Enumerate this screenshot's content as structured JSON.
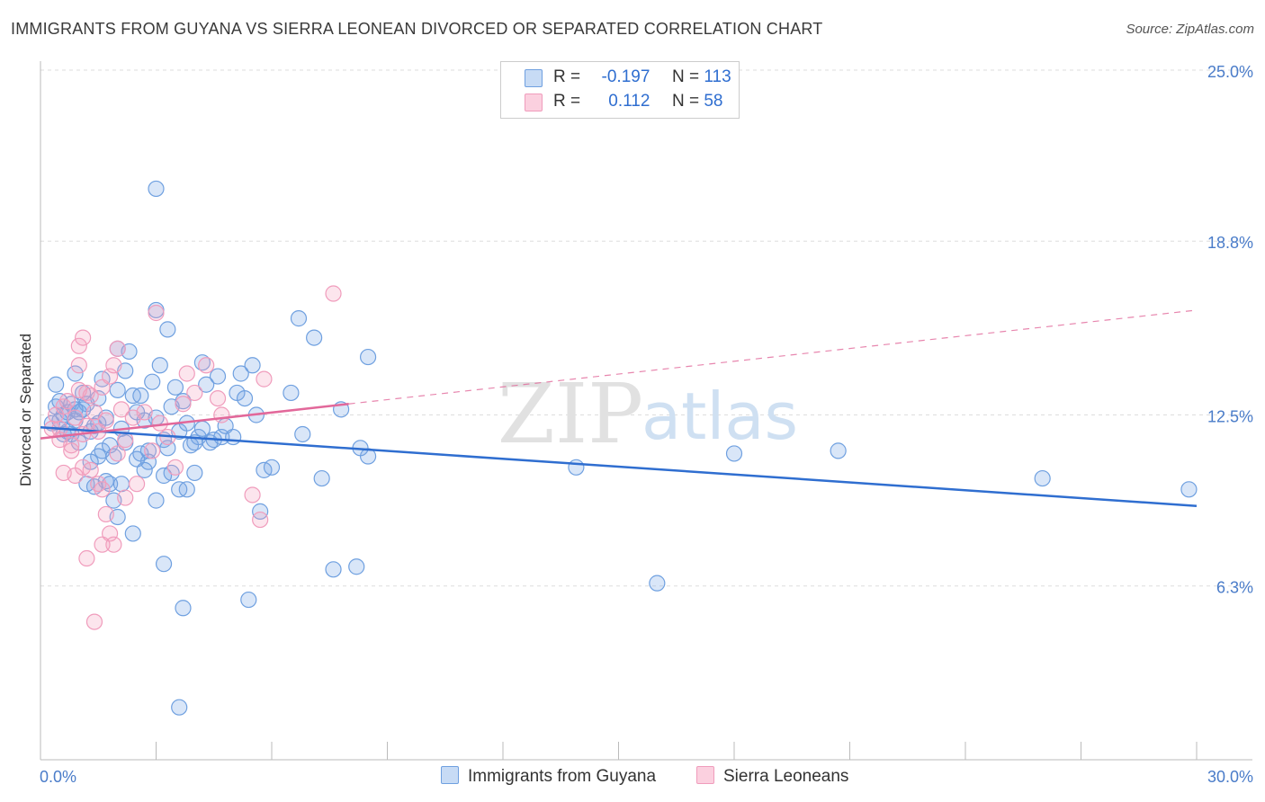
{
  "title": "IMMIGRANTS FROM GUYANA VS SIERRA LEONEAN DIVORCED OR SEPARATED CORRELATION CHART",
  "source": "Source: ZipAtlas.com",
  "watermark": {
    "zip": "ZIP",
    "atlas": "atlas"
  },
  "legend": {
    "rows": [
      {
        "r_label": "R =",
        "r_value": "-0.197",
        "n_label": "N =",
        "n_value": "113",
        "color": "#6fa0e0"
      },
      {
        "r_label": "R =",
        "r_value": "0.112",
        "n_label": "N =",
        "n_value": "58",
        "color": "#f09cbc"
      }
    ]
  },
  "chart_data": {
    "type": "scatter",
    "title": "IMMIGRANTS FROM GUYANA VS SIERRA LEONEAN DIVORCED OR SEPARATED CORRELATION CHART",
    "xlabel": "",
    "ylabel": "Divorced or Separated",
    "xlim": [
      0,
      30
    ],
    "ylim": [
      0,
      25
    ],
    "x_tick_labels": [
      "0.0%",
      "30.0%"
    ],
    "y_ticks": [
      6.3,
      12.5,
      18.8,
      25.0
    ],
    "y_tick_labels": [
      "6.3%",
      "12.5%",
      "18.8%",
      "25.0%"
    ],
    "grid": true,
    "legend_position": "top-center",
    "series": [
      {
        "name": "Immigrants from Guyana",
        "color": "#6fa0e0",
        "line_color": "#2f6ed0",
        "trend": {
          "x": [
            0,
            30
          ],
          "y": [
            12.05,
            9.2
          ],
          "style": "solid"
        },
        "points": [
          [
            0.3,
            12.2
          ],
          [
            0.4,
            12.8
          ],
          [
            0.5,
            13.0
          ],
          [
            0.6,
            12.5
          ],
          [
            0.7,
            12.6
          ],
          [
            0.8,
            11.8
          ],
          [
            0.9,
            12.3
          ],
          [
            1.0,
            11.5
          ],
          [
            1.1,
            13.3
          ],
          [
            1.2,
            12.9
          ],
          [
            1.3,
            11.9
          ],
          [
            1.4,
            12.1
          ],
          [
            1.5,
            13.1
          ],
          [
            1.6,
            11.2
          ],
          [
            1.7,
            12.4
          ],
          [
            1.8,
            11.4
          ],
          [
            1.9,
            11.0
          ],
          [
            2.0,
            13.4
          ],
          [
            2.1,
            12.0
          ],
          [
            2.2,
            14.1
          ],
          [
            2.3,
            14.8
          ],
          [
            2.4,
            13.2
          ],
          [
            2.5,
            12.6
          ],
          [
            2.6,
            11.1
          ],
          [
            2.7,
            12.3
          ],
          [
            2.8,
            10.8
          ],
          [
            2.9,
            13.7
          ],
          [
            3.0,
            12.4
          ],
          [
            3.1,
            14.3
          ],
          [
            3.2,
            11.6
          ],
          [
            3.3,
            11.3
          ],
          [
            3.4,
            12.8
          ],
          [
            3.5,
            13.5
          ],
          [
            3.6,
            11.9
          ],
          [
            3.7,
            13.0
          ],
          [
            3.8,
            12.2
          ],
          [
            3.9,
            11.4
          ],
          [
            4.0,
            10.4
          ],
          [
            4.1,
            11.7
          ],
          [
            4.2,
            14.4
          ],
          [
            4.3,
            13.6
          ],
          [
            4.4,
            11.5
          ],
          [
            4.5,
            11.6
          ],
          [
            4.6,
            13.9
          ],
          [
            4.7,
            11.7
          ],
          [
            4.8,
            12.1
          ],
          [
            5.0,
            11.7
          ],
          [
            5.1,
            13.3
          ],
          [
            5.2,
            14.0
          ],
          [
            5.3,
            13.1
          ],
          [
            5.5,
            14.3
          ],
          [
            5.8,
            10.5
          ],
          [
            6.0,
            10.6
          ],
          [
            6.5,
            13.3
          ],
          [
            6.8,
            11.8
          ],
          [
            0.5,
            12.3
          ],
          [
            0.6,
            11.8
          ],
          [
            0.8,
            12.9
          ],
          [
            1.0,
            12.6
          ],
          [
            1.2,
            10.0
          ],
          [
            1.4,
            9.9
          ],
          [
            1.5,
            11.0
          ],
          [
            1.7,
            10.1
          ],
          [
            1.8,
            10.0
          ],
          [
            1.9,
            9.4
          ],
          [
            2.0,
            8.8
          ],
          [
            2.1,
            10.0
          ],
          [
            2.4,
            8.2
          ],
          [
            2.5,
            10.9
          ],
          [
            2.7,
            10.5
          ],
          [
            2.8,
            11.2
          ],
          [
            3.0,
            9.4
          ],
          [
            3.2,
            10.3
          ],
          [
            3.4,
            10.4
          ],
          [
            3.6,
            9.8
          ],
          [
            3.8,
            9.8
          ],
          [
            4.0,
            11.5
          ],
          [
            3.0,
            16.3
          ],
          [
            3.3,
            15.6
          ],
          [
            3.0,
            20.7
          ],
          [
            6.7,
            16.0
          ],
          [
            7.1,
            15.3
          ],
          [
            8.5,
            14.6
          ],
          [
            7.3,
            10.2
          ],
          [
            7.8,
            12.7
          ],
          [
            8.3,
            11.3
          ],
          [
            8.5,
            11.0
          ],
          [
            3.2,
            7.1
          ],
          [
            3.7,
            5.5
          ],
          [
            5.4,
            5.8
          ],
          [
            7.6,
            6.9
          ],
          [
            8.2,
            7.0
          ],
          [
            5.7,
            9.0
          ],
          [
            3.6,
            1.9
          ],
          [
            13.9,
            10.6
          ],
          [
            16.0,
            6.4
          ],
          [
            18.0,
            11.1
          ],
          [
            20.7,
            11.2
          ],
          [
            26.0,
            10.2
          ],
          [
            29.8,
            9.8
          ],
          [
            0.4,
            13.6
          ],
          [
            0.9,
            14.0
          ],
          [
            1.1,
            12.7
          ],
          [
            1.6,
            13.8
          ],
          [
            2.0,
            14.9
          ],
          [
            2.2,
            11.5
          ],
          [
            0.7,
            11.9
          ],
          [
            0.9,
            12.7
          ],
          [
            1.3,
            10.8
          ],
          [
            1.5,
            12.2
          ],
          [
            2.6,
            13.2
          ],
          [
            4.2,
            12.0
          ],
          [
            5.6,
            12.5
          ]
        ]
      },
      {
        "name": "Sierra Leoneans",
        "color": "#f09cbc",
        "line_color": "#e2689a",
        "trend": {
          "x": [
            0,
            8
          ],
          "y": [
            11.65,
            12.9
          ],
          "style": "solid"
        },
        "trend_extension": {
          "x": [
            8,
            30
          ],
          "y": [
            12.9,
            16.3
          ],
          "style": "dashed"
        },
        "points": [
          [
            0.3,
            12.0
          ],
          [
            0.4,
            12.5
          ],
          [
            0.5,
            11.6
          ],
          [
            0.6,
            12.8
          ],
          [
            0.7,
            13.0
          ],
          [
            0.8,
            11.2
          ],
          [
            0.9,
            12.4
          ],
          [
            1.0,
            13.4
          ],
          [
            1.1,
            11.8
          ],
          [
            1.2,
            12.1
          ],
          [
            1.3,
            13.2
          ],
          [
            1.4,
            12.6
          ],
          [
            1.5,
            11.9
          ],
          [
            1.6,
            13.5
          ],
          [
            1.7,
            12.3
          ],
          [
            1.8,
            13.9
          ],
          [
            1.9,
            14.3
          ],
          [
            2.0,
            14.9
          ],
          [
            2.1,
            12.7
          ],
          [
            2.2,
            11.6
          ],
          [
            2.4,
            12.4
          ],
          [
            2.5,
            10.0
          ],
          [
            2.7,
            12.6
          ],
          [
            2.9,
            11.2
          ],
          [
            3.0,
            16.2
          ],
          [
            3.1,
            12.2
          ],
          [
            3.3,
            11.7
          ],
          [
            3.5,
            10.6
          ],
          [
            3.7,
            12.9
          ],
          [
            3.8,
            14.0
          ],
          [
            4.0,
            13.3
          ],
          [
            4.3,
            14.3
          ],
          [
            4.6,
            13.1
          ],
          [
            4.7,
            12.5
          ],
          [
            5.5,
            9.6
          ],
          [
            5.7,
            8.7
          ],
          [
            5.8,
            13.8
          ],
          [
            7.6,
            16.9
          ],
          [
            0.6,
            10.4
          ],
          [
            0.9,
            10.3
          ],
          [
            1.0,
            15.0
          ],
          [
            1.1,
            10.6
          ],
          [
            1.3,
            10.5
          ],
          [
            1.5,
            10.0
          ],
          [
            1.6,
            9.8
          ],
          [
            1.7,
            8.9
          ],
          [
            1.8,
            8.2
          ],
          [
            1.9,
            7.8
          ],
          [
            1.6,
            7.8
          ],
          [
            1.2,
            7.3
          ],
          [
            1.4,
            5.0
          ],
          [
            2.0,
            11.1
          ],
          [
            2.2,
            9.5
          ],
          [
            1.2,
            13.3
          ],
          [
            1.0,
            14.3
          ],
          [
            1.1,
            15.3
          ],
          [
            0.5,
            12.0
          ],
          [
            0.8,
            11.4
          ]
        ]
      }
    ]
  }
}
